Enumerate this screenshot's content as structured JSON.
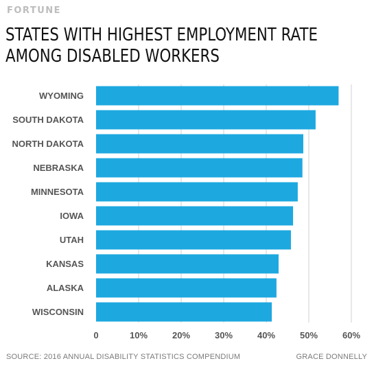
{
  "brand": "FORTUNE",
  "title_lines": [
    "STATES WITH HIGHEST EMPLOYMENT RATE",
    "AMONG DISABLED WORKERS"
  ],
  "source": "SOURCE: 2016 ANNUAL DISABILITY STATISTICS COMPENDIUM",
  "credit": "GRACE DONNELLY",
  "colors": {
    "bar": "#1ea8e0",
    "grid": "#d0d0d0",
    "label": "#555555",
    "tick": "#555555"
  },
  "chart_data": {
    "type": "bar",
    "orientation": "horizontal",
    "categories": [
      "WYOMING",
      "SOUTH DAKOTA",
      "NORTH DAKOTA",
      "NEBRASKA",
      "MINNESOTA",
      "IOWA",
      "UTAH",
      "KANSAS",
      "ALASKA",
      "WISCONSIN"
    ],
    "values": [
      57.0,
      51.6,
      48.7,
      48.5,
      47.4,
      46.3,
      45.8,
      42.9,
      42.4,
      41.3
    ],
    "xlim": [
      0,
      60
    ],
    "xticks": [
      0,
      10,
      20,
      30,
      40,
      50,
      60
    ],
    "xtick_labels": [
      "0",
      "10%",
      "20%",
      "30%",
      "40%",
      "50%",
      "60%"
    ],
    "grid": true,
    "title": "STATES WITH HIGHEST EMPLOYMENT RATE AMONG DISABLED WORKERS"
  }
}
